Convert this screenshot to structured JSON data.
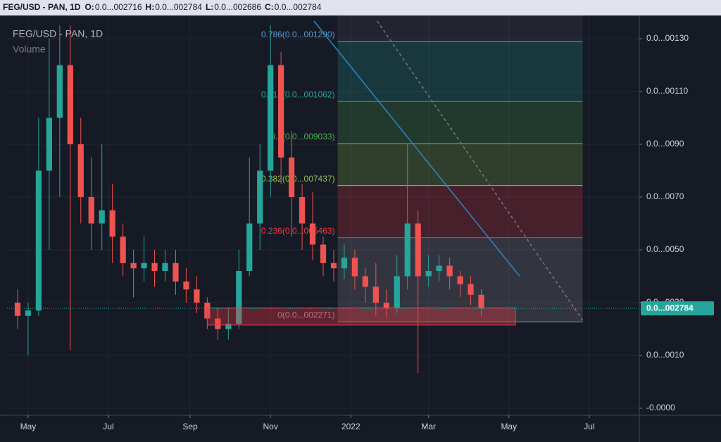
{
  "header": {
    "symbol": "FEG/USD - PAN, 1D",
    "ohlc": [
      {
        "key": "O:",
        "value": "0.0...002716"
      },
      {
        "key": "H:",
        "value": "0.0...002784"
      },
      {
        "key": "L:",
        "value": "0.0...002686"
      },
      {
        "key": "C:",
        "value": "0.0...002784"
      }
    ]
  },
  "chart_data": {
    "type": "candlestick",
    "title": "FEG/USD - PAN, 1D",
    "subtitle": "Volume",
    "up_color": "#26a69a",
    "down_color": "#ef5350",
    "grid": true,
    "xlim": [
      -16,
      464
    ],
    "xticks": [
      {
        "value": 0,
        "label": "May"
      },
      {
        "value": 61,
        "label": "Jul"
      },
      {
        "value": 123,
        "label": "Sep"
      },
      {
        "value": 184,
        "label": "Nov"
      },
      {
        "value": 245,
        "label": "2022"
      },
      {
        "value": 304,
        "label": "Mar"
      },
      {
        "value": 365,
        "label": "May"
      },
      {
        "value": 426,
        "label": "Jul"
      }
    ],
    "ylim": [
      -1.267e-06,
      1.388e-05
    ],
    "yticks": [
      {
        "value": 1.3e-05,
        "label": "0.0...00130"
      },
      {
        "value": 1.1e-05,
        "label": "0.0...00110"
      },
      {
        "value": 9e-06,
        "label": "0.0...0090"
      },
      {
        "value": 7e-06,
        "label": "0.0...0070"
      },
      {
        "value": 5e-06,
        "label": "0.0...0050"
      },
      {
        "value": 3e-06,
        "label": "0.0...0030"
      },
      {
        "value": 1e-06,
        "label": "0.0...0010"
      },
      {
        "value": -1e-06,
        "label": "-0.0000"
      }
    ],
    "last_price": {
      "value": 2.784e-06,
      "label": "0.0...002784",
      "color": "#26a69a"
    },
    "candles": [
      {
        "x": -8,
        "o": 3e-06,
        "h": 3.5e-06,
        "l": 2e-06,
        "c": 2.5e-06
      },
      {
        "x": 0,
        "o": 2.5e-06,
        "h": 3e-06,
        "l": 1e-06,
        "c": 2.7e-06
      },
      {
        "x": 8,
        "o": 2.7e-06,
        "h": 1e-05,
        "l": 2.5e-06,
        "c": 8e-06
      },
      {
        "x": 16,
        "o": 8e-06,
        "h": 1.3e-05,
        "l": 5e-06,
        "c": 1e-05
      },
      {
        "x": 24,
        "o": 1e-05,
        "h": 1.35e-05,
        "l": 7e-06,
        "c": 1.2e-05
      },
      {
        "x": 32,
        "o": 1.2e-05,
        "h": 1.35e-05,
        "l": 1.2e-06,
        "c": 9e-06
      },
      {
        "x": 40,
        "o": 9e-06,
        "h": 1e-05,
        "l": 6e-06,
        "c": 7e-06
      },
      {
        "x": 48,
        "o": 7e-06,
        "h": 8.5e-06,
        "l": 5e-06,
        "c": 6e-06
      },
      {
        "x": 56,
        "o": 6e-06,
        "h": 9e-06,
        "l": 5e-06,
        "c": 6.5e-06
      },
      {
        "x": 64,
        "o": 6.5e-06,
        "h": 7.5e-06,
        "l": 4.5e-06,
        "c": 5.5e-06
      },
      {
        "x": 72,
        "o": 5.5e-06,
        "h": 6e-06,
        "l": 4e-06,
        "c": 4.5e-06
      },
      {
        "x": 80,
        "o": 4.5e-06,
        "h": 5e-06,
        "l": 3.2e-06,
        "c": 4.3e-06
      },
      {
        "x": 88,
        "o": 4.3e-06,
        "h": 5.5e-06,
        "l": 3.8e-06,
        "c": 4.5e-06
      },
      {
        "x": 96,
        "o": 4.5e-06,
        "h": 5e-06,
        "l": 3.6e-06,
        "c": 4.2e-06
      },
      {
        "x": 104,
        "o": 4.2e-06,
        "h": 5e-06,
        "l": 3.8e-06,
        "c": 4.5e-06
      },
      {
        "x": 112,
        "o": 4.5e-06,
        "h": 5e-06,
        "l": 3.3e-06,
        "c": 3.8e-06
      },
      {
        "x": 120,
        "o": 3.8e-06,
        "h": 4.3e-06,
        "l": 3e-06,
        "c": 3.5e-06
      },
      {
        "x": 128,
        "o": 3.5e-06,
        "h": 4e-06,
        "l": 2.6e-06,
        "c": 3e-06
      },
      {
        "x": 136,
        "o": 3e-06,
        "h": 3.2e-06,
        "l": 2e-06,
        "c": 2.4e-06
      },
      {
        "x": 144,
        "o": 2.4e-06,
        "h": 2.8e-06,
        "l": 1.6e-06,
        "c": 2e-06
      },
      {
        "x": 152,
        "o": 2e-06,
        "h": 2.8e-06,
        "l": 1.6e-06,
        "c": 2.2e-06
      },
      {
        "x": 160,
        "o": 2.2e-06,
        "h": 5e-06,
        "l": 2e-06,
        "c": 4.2e-06
      },
      {
        "x": 168,
        "o": 4.2e-06,
        "h": 8.5e-06,
        "l": 4e-06,
        "c": 6e-06
      },
      {
        "x": 176,
        "o": 6e-06,
        "h": 9e-06,
        "l": 5e-06,
        "c": 8e-06
      },
      {
        "x": 184,
        "o": 8e-06,
        "h": 1.35e-05,
        "l": 7e-06,
        "c": 1.2e-05
      },
      {
        "x": 192,
        "o": 1.2e-05,
        "h": 1.25e-05,
        "l": 7.5e-06,
        "c": 8.5e-06
      },
      {
        "x": 200,
        "o": 8.5e-06,
        "h": 9.5e-06,
        "l": 5.5e-06,
        "c": 7e-06
      },
      {
        "x": 208,
        "o": 7e-06,
        "h": 7.5e-06,
        "l": 5e-06,
        "c": 6e-06
      },
      {
        "x": 216,
        "o": 6e-06,
        "h": 7.2e-06,
        "l": 4.6e-06,
        "c": 5.2e-06
      },
      {
        "x": 224,
        "o": 5.2e-06,
        "h": 5.5e-06,
        "l": 4e-06,
        "c": 4.5e-06
      },
      {
        "x": 232,
        "o": 4.5e-06,
        "h": 5e-06,
        "l": 3.8e-06,
        "c": 4.3e-06
      },
      {
        "x": 240,
        "o": 4.3e-06,
        "h": 5.2e-06,
        "l": 3.9e-06,
        "c": 4.7e-06
      },
      {
        "x": 248,
        "o": 4.7e-06,
        "h": 5e-06,
        "l": 3.5e-06,
        "c": 4e-06
      },
      {
        "x": 256,
        "o": 4e-06,
        "h": 4.3e-06,
        "l": 3e-06,
        "c": 3.6e-06
      },
      {
        "x": 264,
        "o": 3.6e-06,
        "h": 4.5e-06,
        "l": 2.5e-06,
        "c": 3e-06
      },
      {
        "x": 272,
        "o": 3e-06,
        "h": 3.5e-06,
        "l": 2.4e-06,
        "c": 2.8e-06
      },
      {
        "x": 280,
        "o": 2.8e-06,
        "h": 4.8e-06,
        "l": 2.6e-06,
        "c": 4e-06
      },
      {
        "x": 288,
        "o": 4e-06,
        "h": 9e-06,
        "l": 3.5e-06,
        "c": 6e-06
      },
      {
        "x": 296,
        "o": 6e-06,
        "h": 6.5e-06,
        "l": 3.3e-07,
        "c": 4e-06
      },
      {
        "x": 304,
        "o": 4e-06,
        "h": 4.8e-06,
        "l": 3.6e-06,
        "c": 4.2e-06
      },
      {
        "x": 312,
        "o": 4.2e-06,
        "h": 4.8e-06,
        "l": 3.8e-06,
        "c": 4.4e-06
      },
      {
        "x": 320,
        "o": 4.4e-06,
        "h": 4.7e-06,
        "l": 3.5e-06,
        "c": 4e-06
      },
      {
        "x": 328,
        "o": 4e-06,
        "h": 4.2e-06,
        "l": 3.2e-06,
        "c": 3.7e-06
      },
      {
        "x": 336,
        "o": 3.7e-06,
        "h": 4e-06,
        "l": 2.9e-06,
        "c": 3.3e-06
      },
      {
        "x": 344,
        "o": 3.3e-06,
        "h": 3.5e-06,
        "l": 2.5e-06,
        "c": 2.784e-06
      }
    ],
    "fib": {
      "x": [
        235,
        421
      ],
      "levels": [
        {
          "label": "0.786(0.0...001290)",
          "price": 1.29e-05,
          "color": "#5b9bd5"
        },
        {
          "label": "0.618(0.0...001062)",
          "price": 1.062e-05,
          "color": "#26a69a"
        },
        {
          "label": "0.5(0.0...009033)",
          "price": 9.033e-06,
          "color": "#4caf50"
        },
        {
          "label": "0.382(0.0...007437)",
          "price": 7.437e-06,
          "color": "#8bc34a"
        },
        {
          "label": "0.236(0.0...005463)",
          "price": 5.463e-06,
          "color": "#f23645"
        },
        {
          "label": "0(0.0...002271)",
          "price": 2.271e-06,
          "color": "#9598a1"
        }
      ]
    },
    "rectangle": {
      "x": [
        136,
        370
      ],
      "y": [
        2.15e-06,
        2.8e-06
      ],
      "color": "#f23645"
    },
    "trend_lines": [
      {
        "x": [
          217,
          373
        ],
        "y": [
          1.367e-05,
          4.01e-06
        ],
        "color": "#2e86c1",
        "dash": false
      },
      {
        "x": [
          265,
          421
        ],
        "y": [
          1.367e-05,
          2.33e-06
        ],
        "color": "#787b86",
        "dash": true
      }
    ]
  }
}
